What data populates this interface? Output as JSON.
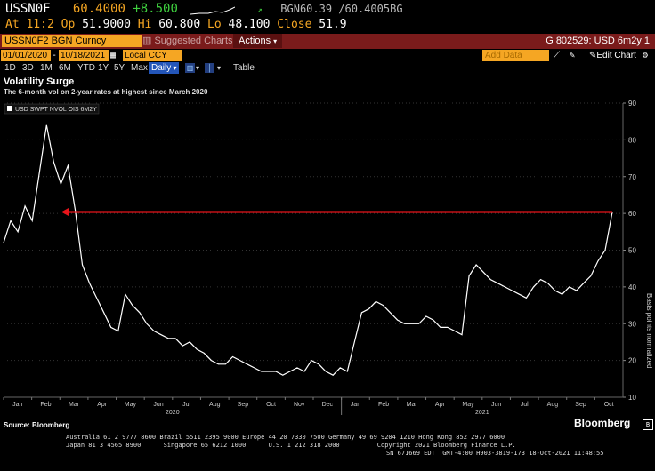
{
  "quote": {
    "ticker": "USSN0F",
    "last": "60.4000",
    "change": "+8.500",
    "bgn_label": "BGN",
    "bgn_value": "60.39 /60.4005",
    "bgn_suffix": "BG",
    "at_label": "At",
    "at_time": "11:2",
    "op_label": "Op",
    "open": "51.9000",
    "hi_label": "Hi",
    "high": "60.800",
    "lo_label": "Lo",
    "low": "48.100",
    "close_label": "Close",
    "close": "51.9"
  },
  "titlebar": {
    "security": "USSN0F2 BGN Curncy",
    "suggested": "Suggested Charts",
    "actions": "Actions",
    "right_title": "G 802529: USD 6m2y 1"
  },
  "datebar": {
    "start": "01/01/2020",
    "end": "10/18/2021",
    "currency": "Local CCY",
    "add_data_placeholder": "Add Data",
    "edit_chart": "Edit Chart"
  },
  "toolbar": {
    "periods": [
      "1D",
      "3D",
      "1M",
      "6M",
      "YTD",
      "1Y",
      "5Y",
      "Max"
    ],
    "frequency": "Daily",
    "table": "Table"
  },
  "chart_data": {
    "type": "line",
    "title": "Volatility Surge",
    "subtitle": "The 6-month vol on 2-year rates at highest since March 2020",
    "legend": [
      "USD SWPT NVOL OIS 6M2Y"
    ],
    "legend_position": "top-left",
    "ylabel": "Basis points normalized",
    "ylim": [
      10,
      90
    ],
    "yticks": [
      10,
      20,
      30,
      40,
      50,
      60,
      70,
      80,
      90
    ],
    "xticks": [
      "Jan",
      "Feb",
      "Mar",
      "Apr",
      "May",
      "Jun",
      "Jul",
      "Aug",
      "Sep",
      "Oct",
      "Nov",
      "Dec",
      "Jan",
      "Feb",
      "Mar",
      "Apr",
      "May",
      "Jun",
      "Jul",
      "Aug",
      "Sep",
      "Oct"
    ],
    "year_labels": [
      "2020",
      "2021"
    ],
    "series": [
      {
        "values": [
          52,
          58,
          55,
          62,
          58,
          71,
          84,
          74,
          68,
          73,
          61,
          46,
          41,
          37,
          33,
          29,
          28,
          38,
          35,
          33,
          30,
          28,
          27,
          26,
          26,
          24,
          25,
          23,
          22,
          20,
          19,
          19,
          21,
          20,
          19,
          18,
          17,
          17,
          17,
          16,
          17,
          18,
          17,
          20,
          19,
          17,
          16,
          18,
          17,
          25,
          33,
          34,
          36,
          35,
          33,
          31,
          30,
          30,
          30,
          32,
          31,
          29,
          29,
          28,
          27,
          43,
          46,
          44,
          42,
          41,
          40,
          39,
          38,
          37,
          40,
          42,
          41,
          39,
          38,
          40,
          39,
          41,
          43,
          47,
          50,
          60.4
        ]
      }
    ],
    "annotation": {
      "from_value": 60.4,
      "to_value": 60.4,
      "label": ""
    },
    "colors": {
      "line": "#ffffff",
      "arrow": "#e8141a",
      "grid": "#333333"
    }
  },
  "footer": {
    "source": "Source: Bloomberg",
    "brand": "Bloomberg",
    "line1": "Australia 61 2 9777 8600 Brazil 5511 2395 9000 Europe 44 20 7330 7500 Germany 49 69 9204 1210 Hong Kong 852 2977 6000",
    "line2": "Japan 81 3 4565 8900      Singapore 65 6212 1000      U.S. 1 212 318 2000          Copyright 2021 Bloomberg Finance L.P.",
    "line3": "SN 671669 EDT  GMT-4:00 H903-3819-173 18-Oct-2021 11:48:55"
  }
}
